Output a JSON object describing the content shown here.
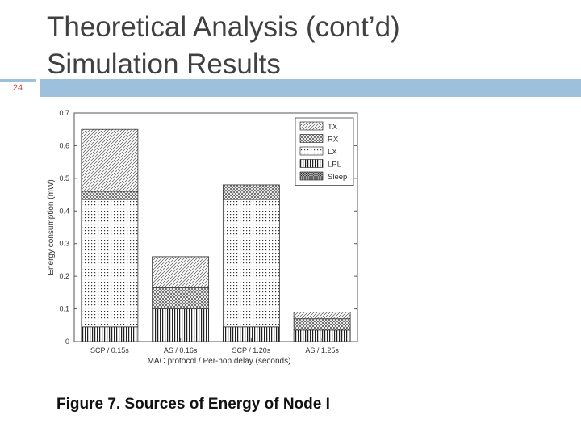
{
  "slide": {
    "number": "24",
    "title_line1": "Theoretical Analysis (cont’d)",
    "title_line2": "Simulation Results",
    "caption": "Figure 7. Sources of Energy of Node I"
  },
  "chart_data": {
    "type": "bar",
    "stacked": true,
    "categories": [
      "SCP / 0.15s",
      "AS / 0.16s",
      "SCP / 1.20s",
      "AS / 1.25s"
    ],
    "xlabel": "MAC protocol / Per-hop delay (seconds)",
    "ylabel": "Energy consumption (mW)",
    "ylim": [
      0,
      0.7
    ],
    "yticks": [
      0,
      0.1,
      0.2,
      0.3,
      0.4,
      0.5,
      0.6,
      0.7
    ],
    "grid": false,
    "legend_position": "top-right",
    "series": [
      {
        "name": "LPL",
        "pattern": "vertical",
        "values": [
          0.045,
          0.1,
          0.045,
          0.035
        ]
      },
      {
        "name": "LX",
        "pattern": "dots",
        "values": [
          0.39,
          0.0,
          0.39,
          0.0
        ]
      },
      {
        "name": "RX",
        "pattern": "crosshatch",
        "values": [
          0.025,
          0.065,
          0.045,
          0.035
        ]
      },
      {
        "name": "TX",
        "pattern": "diagonal",
        "values": [
          0.19,
          0.095,
          0.0,
          0.02
        ]
      },
      {
        "name": "Sleep",
        "pattern": "dense",
        "values": [
          0.0,
          0.0,
          0.0,
          0.0
        ]
      }
    ],
    "legend_order": [
      "TX",
      "RX",
      "LX",
      "LPL",
      "Sleep"
    ]
  }
}
